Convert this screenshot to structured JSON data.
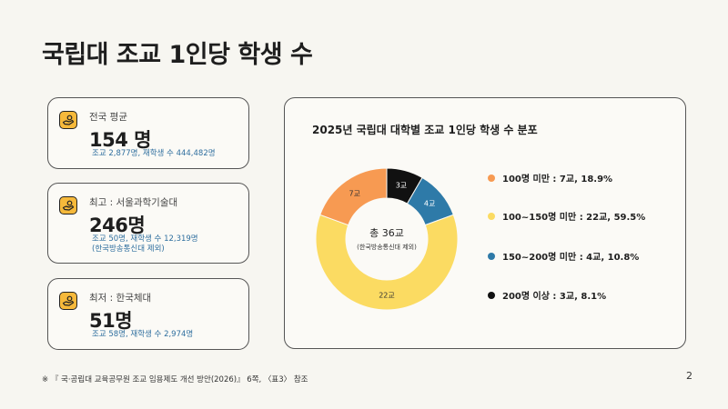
{
  "page_title": "국립대 조교 1인당 학생 수",
  "cards": [
    {
      "label": "전국 평균",
      "value": "154 명",
      "sub": [
        "조교 2,877명, 재학생 수 444,482명"
      ]
    },
    {
      "label": "최고 : 서울과학기술대",
      "value": "246명",
      "sub": [
        "조교 50명, 재학생 수 12,319명",
        "(한국방송통신대 제외)"
      ]
    },
    {
      "label": "최저 : 한국체대",
      "value": "51명",
      "sub": [
        "조교 58명, 재학생 수 2,974명"
      ]
    }
  ],
  "colors": {
    "orange": "#f79a52",
    "yellow": "#fbdb62",
    "blue": "#2e7aa8",
    "black": "#111111",
    "icon": "#f6b93b"
  },
  "chart_data": {
    "type": "pie",
    "variant": "donut",
    "title": "2025년 국립대 대학별 조교 1인당 학생 수 분포",
    "center_label": "총 36교",
    "center_sublabel": "(한국방송통신대 제외)",
    "categories": [
      "100명 미만",
      "100~150명 미만",
      "150~200명 미만",
      "200명 이상"
    ],
    "values": [
      7,
      22,
      4,
      3
    ],
    "slice_labels": [
      "7교",
      "22교",
      "4교",
      "3교"
    ],
    "legend": [
      "100명 미만 : 7교, 18.9%",
      "100~150명 미만 : 22교, 59.5%",
      "150~200명 미만 : 4교, 10.8%",
      "200명 이상 : 3교, 8.1%"
    ],
    "legend_position": "right"
  },
  "footnote": "※ 『 국·공립대 교육공무원 조교 임용제도 개선 방안(2026)』 6쪽, 〈표3〉 참조",
  "page_number": "2"
}
